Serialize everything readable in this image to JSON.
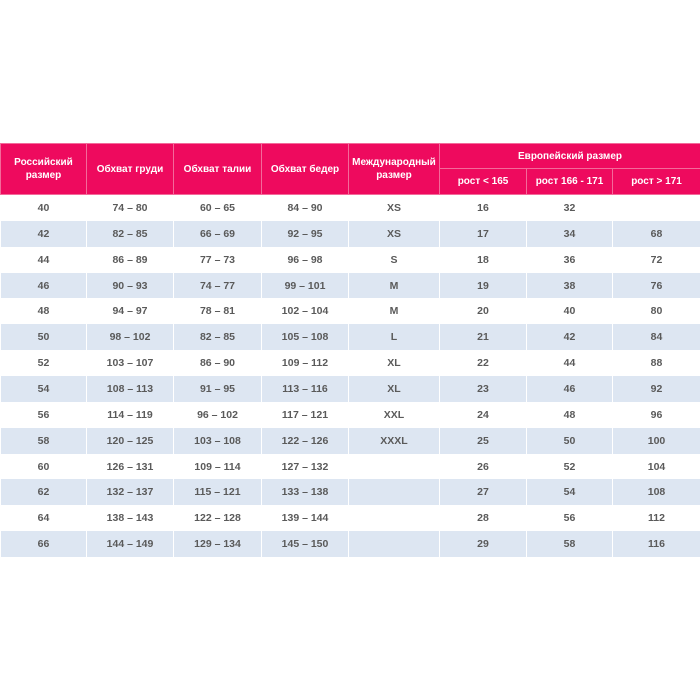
{
  "header": {
    "ru_size": "Российский размер",
    "chest": "Обхват груди",
    "waist": "Обхват талии",
    "hips": "Обхват бедер",
    "intl_size": "Международный размер",
    "eu_size": "Европейский размер",
    "eu_sub": [
      "рост < 165",
      "рост 166 - 171",
      "рост > 171"
    ]
  },
  "colors": {
    "header": "#ee0a5e",
    "stripe": "#dde6f2",
    "text": "#5a5a5a"
  },
  "rows": [
    [
      "40",
      "74 – 80",
      "60 – 65",
      "84 – 90",
      "XS",
      "16",
      "32",
      ""
    ],
    [
      "42",
      "82 – 85",
      "66 – 69",
      "92 – 95",
      "XS",
      "17",
      "34",
      "68"
    ],
    [
      "44",
      "86 – 89",
      "77 – 73",
      "96 – 98",
      "S",
      "18",
      "36",
      "72"
    ],
    [
      "46",
      "90 – 93",
      "74 – 77",
      "99 – 101",
      "M",
      "19",
      "38",
      "76"
    ],
    [
      "48",
      "94 – 97",
      "78 – 81",
      "102 – 104",
      "M",
      "20",
      "40",
      "80"
    ],
    [
      "50",
      "98 – 102",
      "82 – 85",
      "105 – 108",
      "L",
      "21",
      "42",
      "84"
    ],
    [
      "52",
      "103 – 107",
      "86 – 90",
      "109 – 112",
      "XL",
      "22",
      "44",
      "88"
    ],
    [
      "54",
      "108 – 113",
      "91 – 95",
      "113 – 116",
      "XL",
      "23",
      "46",
      "92"
    ],
    [
      "56",
      "114 – 119",
      "96 – 102",
      "117 – 121",
      "XXL",
      "24",
      "48",
      "96"
    ],
    [
      "58",
      "120 – 125",
      "103 – 108",
      "122 – 126",
      "XXXL",
      "25",
      "50",
      "100"
    ],
    [
      "60",
      "126 – 131",
      "109 – 114",
      "127 – 132",
      "",
      "26",
      "52",
      "104"
    ],
    [
      "62",
      "132 – 137",
      "115 – 121",
      "133 – 138",
      "",
      "27",
      "54",
      "108"
    ],
    [
      "64",
      "138 – 143",
      "122 – 128",
      "139 – 144",
      "",
      "28",
      "56",
      "112"
    ],
    [
      "66",
      "144 – 149",
      "129 – 134",
      "145 – 150",
      "",
      "29",
      "58",
      "116"
    ]
  ]
}
